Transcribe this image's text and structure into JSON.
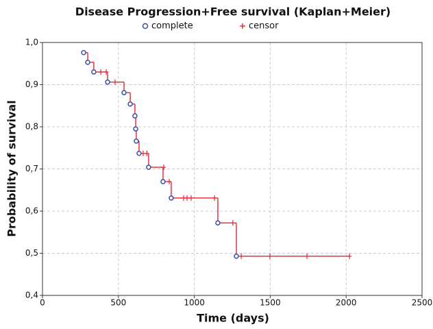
{
  "chart_data": {
    "type": "kaplan-meier",
    "title": "Disease Progression+Free survival (Kaplan+Meier)",
    "x_label": "Time (days)",
    "y_label": "Probability of survival",
    "xlim": [
      0,
      2500
    ],
    "xticks": [
      0,
      500,
      1000,
      1500,
      2000,
      2500
    ],
    "ylim": [
      0.4,
      1.0
    ],
    "yticks": [
      {
        "value": 0.4,
        "label": "0,4"
      },
      {
        "value": 0.5,
        "label": "0,5"
      },
      {
        "value": 0.6,
        "label": "0,6"
      },
      {
        "value": 0.7,
        "label": "0,7"
      },
      {
        "value": 0.8,
        "label": "0,8"
      },
      {
        "value": 0.9,
        "label": "0,9"
      },
      {
        "value": 1.0,
        "label": "1,0"
      }
    ],
    "grid": true,
    "line_color": "#e8323c",
    "series": [
      {
        "name": "complete",
        "color": "#3a4fa8",
        "x": [
          271,
          298,
          338,
          429,
          537,
          578,
          609,
          614,
          618,
          636,
          699,
          794,
          848,
          1155,
          1277
        ],
        "values": [
          0.976,
          0.953,
          0.93,
          0.906,
          0.881,
          0.854,
          0.826,
          0.795,
          0.766,
          0.737,
          0.704,
          0.67,
          0.631,
          0.572,
          0.493
        ]
      },
      {
        "name": "censor",
        "color": "#e8323c",
        "x": [
          384,
          420,
          478,
          663,
          688,
          799,
          835,
          930,
          952,
          979,
          1133,
          1254,
          1309,
          1498,
          1742,
          2022
        ],
        "values": [
          0.93,
          0.93,
          0.906,
          0.737,
          0.737,
          0.704,
          0.67,
          0.631,
          0.631,
          0.631,
          0.631,
          0.572,
          0.493,
          0.493,
          0.493,
          0.493
        ]
      }
    ]
  }
}
